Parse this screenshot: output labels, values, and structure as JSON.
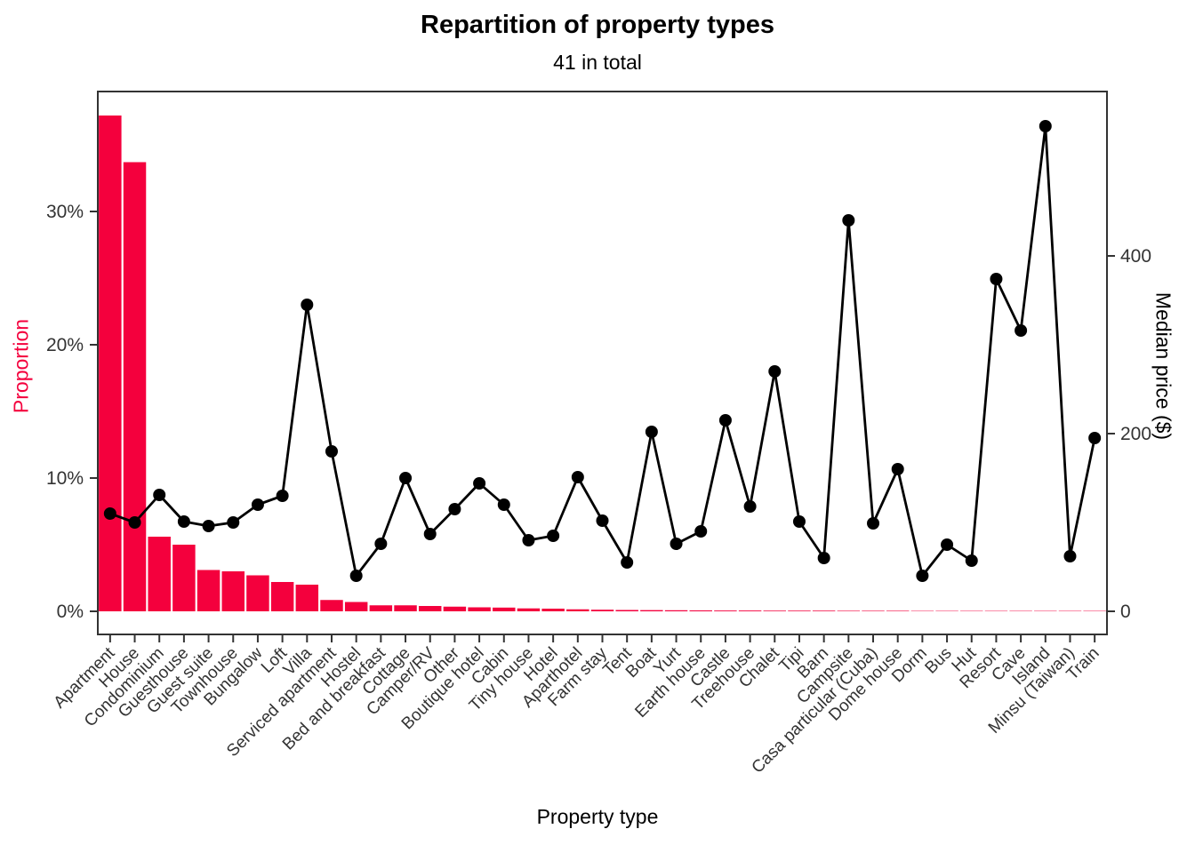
{
  "chart_data": {
    "type": "bar+line",
    "title": "Repartition of property types",
    "subtitle": "41 in total",
    "xlabel": "Property type",
    "ylabel_left": "Proportion",
    "ylabel_right": "Median price ($)",
    "grid": false,
    "legend": "none",
    "categories": [
      "Apartment",
      "House",
      "Condominium",
      "Guesthouse",
      "Guest suite",
      "Townhouse",
      "Bungalow",
      "Loft",
      "Villa",
      "Serviced apartment",
      "Hostel",
      "Bed and breakfast",
      "Cottage",
      "Camper/RV",
      "Other",
      "Boutique hotel",
      "Cabin",
      "Tiny house",
      "Hotel",
      "Aparthotel",
      "Farm stay",
      "Tent",
      "Boat",
      "Yurt",
      "Earth house",
      "Castle",
      "Treehouse",
      "Chalet",
      "Tipi",
      "Barn",
      "Campsite",
      "Casa particular (Cuba)",
      "Dome house",
      "Dorm",
      "Bus",
      "Hut",
      "Resort",
      "Cave",
      "Island",
      "Minsu (Taiwan)",
      "Train"
    ],
    "series": [
      {
        "name": "Proportion",
        "type": "bar",
        "axis": "left",
        "unit": "%",
        "values": [
          37.2,
          33.7,
          5.6,
          5.0,
          3.1,
          3.0,
          2.7,
          2.2,
          2.0,
          0.85,
          0.7,
          0.45,
          0.45,
          0.4,
          0.35,
          0.3,
          0.28,
          0.22,
          0.2,
          0.15,
          0.12,
          0.1,
          0.09,
          0.08,
          0.07,
          0.06,
          0.06,
          0.05,
          0.05,
          0.05,
          0.04,
          0.04,
          0.04,
          0.03,
          0.03,
          0.03,
          0.03,
          0.03,
          0.03,
          0.03,
          0.03
        ]
      },
      {
        "name": "Median price",
        "type": "line",
        "axis": "right",
        "unit": "$",
        "values": [
          110,
          100,
          131,
          101,
          96,
          100,
          120,
          130,
          345,
          180,
          40,
          76,
          150,
          87,
          115,
          144,
          120,
          80,
          85,
          151,
          102,
          55,
          202,
          76,
          90,
          215,
          118,
          270,
          101,
          60,
          440,
          99,
          160,
          40,
          75,
          57,
          374,
          316,
          546,
          62,
          195
        ]
      }
    ],
    "axes": {
      "left": {
        "range": [
          0,
          39.1
        ],
        "ticks": [
          {
            "value": 0,
            "label": "0%"
          },
          {
            "value": 10,
            "label": "10%"
          },
          {
            "value": 20,
            "label": "20%"
          },
          {
            "value": 30,
            "label": "30%"
          }
        ]
      },
      "right": {
        "range": [
          0,
          586
        ],
        "ticks": [
          {
            "value": 0,
            "label": "0"
          },
          {
            "value": 200,
            "label": "200"
          },
          {
            "value": 400,
            "label": "400"
          }
        ]
      },
      "relation": "right_value = left_percent * 15"
    },
    "colors": {
      "bar": "#F4003D",
      "line": "#000000",
      "point": "#000000",
      "axis_text": "#333333",
      "panel_border": "#333333",
      "left_axis_title": "#F4003D"
    }
  }
}
